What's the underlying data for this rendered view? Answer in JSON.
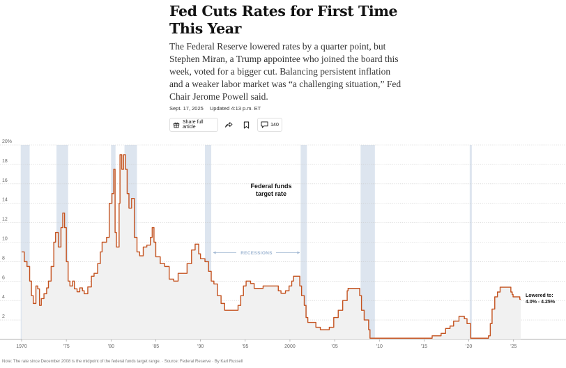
{
  "article": {
    "headline": "Fed Cuts Rates for First Time This Year",
    "summary": "The Federal Reserve lowered rates by a quarter point, but Stephen Miran, a Trump appointee who joined the board this week, voted for a bigger cut. Balancing persistent inflation and a weaker labor market was “a challenging situation,” Fed Chair Jerome Powell said.",
    "date": "Sept. 17, 2025",
    "updated": "Updated 4:13 p.m. ET"
  },
  "toolbar": {
    "share_label": "Share full article",
    "comments_count": "140",
    "icons": [
      "gift-icon",
      "share-arrow-icon",
      "bookmark-icon",
      "comment-icon"
    ]
  },
  "chart_data": {
    "type": "line",
    "title": "Federal funds target rate",
    "title_lines": [
      "Federal funds",
      "target rate"
    ],
    "xlabel": "",
    "ylabel": "",
    "xlim": [
      1970.0,
      2025.8
    ],
    "ylim": [
      0,
      20
    ],
    "yticks": [
      2,
      4,
      6,
      8,
      10,
      12,
      14,
      16,
      18,
      20
    ],
    "ytick_labels": [
      "2",
      "4",
      "6",
      "8",
      "10",
      "12",
      "14",
      "16",
      "18",
      "20%"
    ],
    "xticks": [
      1970,
      1975,
      1980,
      1985,
      1990,
      1995,
      2000,
      2005,
      2010,
      2015,
      2020,
      2025
    ],
    "xtick_labels": [
      "1970",
      "’75",
      "’80",
      "’85",
      "’90",
      "’95",
      "2000",
      "’05",
      "’10",
      "’15",
      "’20",
      "’25"
    ],
    "grid": true,
    "recessions_label": "RECESSIONS",
    "recessions": [
      [
        1969.9,
        1970.9
      ],
      [
        1973.9,
        1975.2
      ],
      [
        1980.0,
        1980.5
      ],
      [
        1981.5,
        1982.9
      ],
      [
        1990.5,
        1991.2
      ],
      [
        2001.2,
        2001.9
      ],
      [
        2007.9,
        2009.5
      ],
      [
        2020.1,
        2020.3
      ]
    ],
    "annotation_lines": [
      "Lowered to:",
      "4.0% - 4.25%"
    ],
    "color": "#c4521f",
    "series": [
      {
        "name": "",
        "points": [
          [
            1970.0,
            9.0
          ],
          [
            1970.3,
            8.0
          ],
          [
            1970.6,
            7.5
          ],
          [
            1970.9,
            6.0
          ],
          [
            1971.1,
            4.5
          ],
          [
            1971.3,
            3.7
          ],
          [
            1971.6,
            5.5
          ],
          [
            1971.8,
            5.2
          ],
          [
            1972.0,
            3.5
          ],
          [
            1972.2,
            4.2
          ],
          [
            1972.5,
            4.7
          ],
          [
            1972.8,
            5.3
          ],
          [
            1973.0,
            6.0
          ],
          [
            1973.3,
            7.5
          ],
          [
            1973.6,
            10.0
          ],
          [
            1973.8,
            11.0
          ],
          [
            1974.1,
            9.5
          ],
          [
            1974.4,
            11.5
          ],
          [
            1974.6,
            13.0
          ],
          [
            1974.8,
            11.5
          ],
          [
            1975.0,
            8.0
          ],
          [
            1975.2,
            6.0
          ],
          [
            1975.4,
            5.5
          ],
          [
            1975.7,
            6.0
          ],
          [
            1975.9,
            5.2
          ],
          [
            1976.2,
            4.9
          ],
          [
            1976.5,
            5.3
          ],
          [
            1976.8,
            5.0
          ],
          [
            1977.0,
            4.7
          ],
          [
            1977.4,
            5.4
          ],
          [
            1977.8,
            6.5
          ],
          [
            1978.1,
            6.8
          ],
          [
            1978.5,
            7.8
          ],
          [
            1978.8,
            9.0
          ],
          [
            1979.0,
            10.0
          ],
          [
            1979.5,
            10.5
          ],
          [
            1979.8,
            14.0
          ],
          [
            1980.1,
            15.0
          ],
          [
            1980.3,
            17.5
          ],
          [
            1980.45,
            11.0
          ],
          [
            1980.6,
            9.5
          ],
          [
            1980.9,
            14.0
          ],
          [
            1981.0,
            19.0
          ],
          [
            1981.2,
            17.5
          ],
          [
            1981.4,
            19.0
          ],
          [
            1981.6,
            17.5
          ],
          [
            1981.8,
            15.0
          ],
          [
            1982.0,
            13.5
          ],
          [
            1982.3,
            14.5
          ],
          [
            1982.6,
            10.5
          ],
          [
            1982.9,
            9.0
          ],
          [
            1983.2,
            8.6
          ],
          [
            1983.6,
            9.5
          ],
          [
            1984.0,
            9.7
          ],
          [
            1984.4,
            10.5
          ],
          [
            1984.6,
            11.5
          ],
          [
            1984.8,
            10.0
          ],
          [
            1985.0,
            8.5
          ],
          [
            1985.5,
            7.8
          ],
          [
            1986.0,
            7.5
          ],
          [
            1986.5,
            6.2
          ],
          [
            1987.0,
            6.0
          ],
          [
            1987.5,
            6.8
          ],
          [
            1988.0,
            6.8
          ],
          [
            1988.5,
            7.8
          ],
          [
            1989.0,
            9.2
          ],
          [
            1989.4,
            9.8
          ],
          [
            1989.8,
            8.8
          ],
          [
            1990.0,
            8.3
          ],
          [
            1990.5,
            8.0
          ],
          [
            1990.9,
            7.0
          ],
          [
            1991.2,
            6.0
          ],
          [
            1991.5,
            5.7
          ],
          [
            1991.9,
            4.5
          ],
          [
            1992.3,
            3.7
          ],
          [
            1992.7,
            3.0
          ],
          [
            1993.5,
            3.0
          ],
          [
            1994.2,
            3.5
          ],
          [
            1994.5,
            4.5
          ],
          [
            1994.8,
            5.5
          ],
          [
            1995.1,
            6.0
          ],
          [
            1995.6,
            5.75
          ],
          [
            1996.0,
            5.25
          ],
          [
            1997.0,
            5.5
          ],
          [
            1998.7,
            5.0
          ],
          [
            1999.0,
            4.75
          ],
          [
            1999.5,
            5.0
          ],
          [
            1999.9,
            5.5
          ],
          [
            2000.2,
            6.0
          ],
          [
            2000.4,
            6.5
          ],
          [
            2000.9,
            6.5
          ],
          [
            2001.1,
            5.5
          ],
          [
            2001.3,
            4.5
          ],
          [
            2001.6,
            3.5
          ],
          [
            2001.8,
            2.25
          ],
          [
            2002.0,
            1.75
          ],
          [
            2002.9,
            1.25
          ],
          [
            2003.4,
            1.0
          ],
          [
            2004.4,
            1.25
          ],
          [
            2004.9,
            2.25
          ],
          [
            2005.4,
            3.0
          ],
          [
            2005.9,
            4.0
          ],
          [
            2006.4,
            5.0
          ],
          [
            2006.5,
            5.25
          ],
          [
            2007.6,
            5.25
          ],
          [
            2007.8,
            4.5
          ],
          [
            2008.0,
            3.0
          ],
          [
            2008.3,
            2.0
          ],
          [
            2008.8,
            1.0
          ],
          [
            2008.95,
            0.125
          ],
          [
            2015.9,
            0.375
          ],
          [
            2016.9,
            0.625
          ],
          [
            2017.4,
            1.125
          ],
          [
            2017.9,
            1.375
          ],
          [
            2018.3,
            1.875
          ],
          [
            2018.9,
            2.375
          ],
          [
            2019.5,
            2.125
          ],
          [
            2019.8,
            1.625
          ],
          [
            2020.2,
            0.125
          ],
          [
            2022.2,
            0.375
          ],
          [
            2022.4,
            1.625
          ],
          [
            2022.6,
            3.125
          ],
          [
            2022.9,
            4.375
          ],
          [
            2023.2,
            4.875
          ],
          [
            2023.5,
            5.375
          ],
          [
            2024.7,
            4.875
          ],
          [
            2024.85,
            4.625
          ],
          [
            2024.95,
            4.375
          ],
          [
            2025.7,
            4.125
          ],
          [
            2025.8,
            4.125
          ]
        ]
      }
    ]
  },
  "footnote": {
    "note": "Note: The rate since December 2008 is the midpoint of the federal funds target range.",
    "source": "Source: Federal Reserve",
    "byline": "By Karl Russell"
  }
}
